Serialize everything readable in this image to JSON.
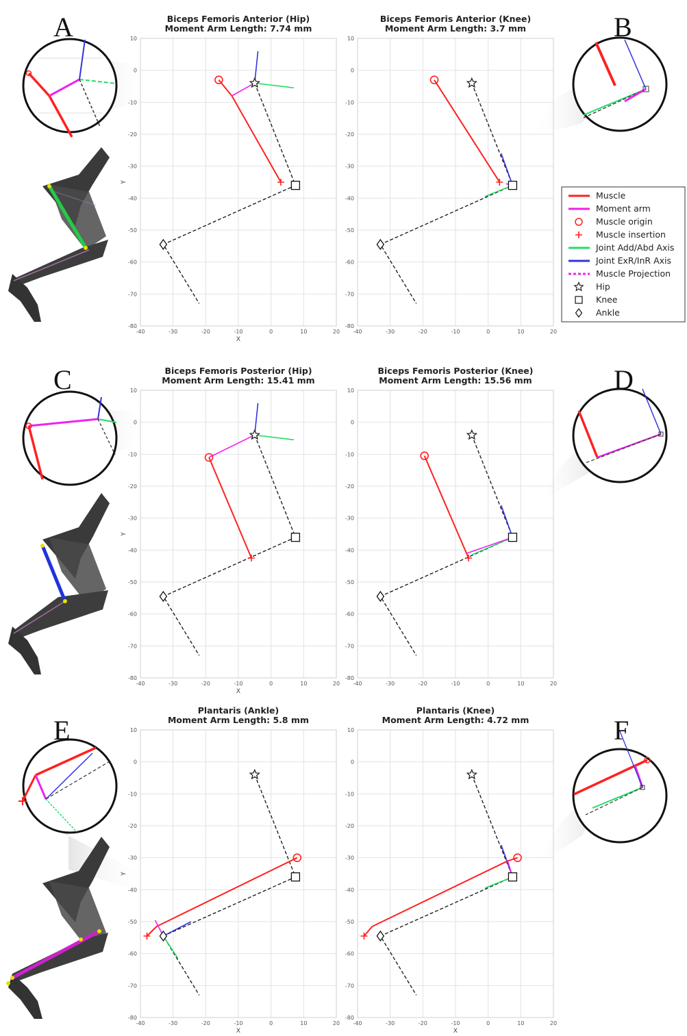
{
  "panel_letters": [
    "A",
    "B",
    "C",
    "D",
    "E",
    "F"
  ],
  "legend": [
    {
      "label": "Muscle",
      "symbol": "line",
      "color": "#ff2020"
    },
    {
      "label": "Moment arm",
      "symbol": "line",
      "color": "#ee22ee"
    },
    {
      "label": "Muscle origin",
      "symbol": "circle",
      "color": "#ff2020"
    },
    {
      "label": "Muscle insertion",
      "symbol": "plus",
      "color": "#ff2020"
    },
    {
      "label": "Joint Add/Abd Axis",
      "symbol": "line",
      "color": "#22dd66"
    },
    {
      "label": "Joint ExR/InR Axis",
      "symbol": "line",
      "color": "#3333dd"
    },
    {
      "label": "Muscle Projection",
      "symbol": "dash",
      "color": "#ee22ee"
    },
    {
      "label": "Hip",
      "symbol": "star",
      "color": "#111111"
    },
    {
      "label": "Knee",
      "symbol": "square",
      "color": "#111111"
    },
    {
      "label": "Ankle",
      "symbol": "diamond",
      "color": "#111111"
    }
  ],
  "chart_data": [
    {
      "type": "line",
      "title": [
        "Biceps Femoris Anterior (Hip)",
        "Moment Arm Length: 7.74 mm"
      ],
      "xlabel": "X",
      "ylabel": "Y",
      "xlim": [
        -40,
        20
      ],
      "ylim": [
        -80,
        10
      ],
      "xticks": [
        "-40",
        "-30",
        "-20",
        "-10",
        "0",
        "10",
        "20"
      ],
      "yticks": [
        "10",
        "0",
        "-10",
        "-20",
        "-30",
        "-40",
        "-50",
        "-60",
        "-70",
        "-80"
      ],
      "grid": true,
      "joints": {
        "hip": [
          -5,
          -4
        ],
        "knee": [
          7.5,
          -36
        ],
        "ankle": [
          -33,
          -54.5
        ],
        "foot": [
          -22,
          -73
        ]
      },
      "muscle": [
        [
          -16,
          -3
        ],
        [
          -12,
          -8
        ],
        [
          3,
          -35
        ]
      ],
      "origin": [
        -16,
        -3
      ],
      "insertion": [
        3,
        -35
      ],
      "moment_arm": [
        [
          -12,
          -8
        ],
        [
          -5,
          -4
        ]
      ],
      "add_abd_axis": [
        [
          -5,
          -4
        ],
        [
          7,
          -5.5
        ]
      ],
      "exr_inr_axis": [
        [
          -5,
          -4
        ],
        [
          -4,
          6
        ]
      ]
    },
    {
      "type": "line",
      "title": [
        "Biceps Femoris Anterior (Knee)",
        "Moment Arm Length: 3.7 mm"
      ],
      "xlabel": "",
      "ylabel": "",
      "xlim": [
        -40,
        20
      ],
      "ylim": [
        -80,
        10
      ],
      "xticks": [
        "-40",
        "-30",
        "-20",
        "-10",
        "0",
        "10",
        "20"
      ],
      "yticks": [
        "10",
        "0",
        "-10",
        "-20",
        "-30",
        "-40",
        "-50",
        "-60",
        "-70",
        "-80"
      ],
      "grid": true,
      "joints": {
        "hip": [
          -5,
          -4
        ],
        "knee": [
          7.5,
          -36
        ],
        "ankle": [
          -33,
          -54.5
        ],
        "foot": [
          -22,
          -73
        ]
      },
      "muscle": [
        [
          -16.5,
          -3
        ],
        [
          -14,
          -7
        ],
        [
          3.5,
          -35
        ]
      ],
      "origin": [
        -16.5,
        -3
      ],
      "insertion": [
        3.5,
        -35
      ],
      "moment_arm": [
        [
          5.5,
          -35.5
        ],
        [
          7.5,
          -36
        ]
      ],
      "add_abd_axis": [
        [
          7.5,
          -36
        ],
        [
          -1,
          -39.5
        ]
      ],
      "exr_inr_axis": [
        [
          7.5,
          -36
        ],
        [
          4,
          -26
        ]
      ]
    },
    {
      "type": "line",
      "title": [
        "Biceps Femoris Posterior (Hip)",
        "Moment Arm Length: 15.41 mm"
      ],
      "xlabel": "X",
      "ylabel": "Y",
      "xlim": [
        -40,
        20
      ],
      "ylim": [
        -80,
        10
      ],
      "xticks": [
        "-40",
        "-30",
        "-20",
        "-10",
        "0",
        "10",
        "20"
      ],
      "yticks": [
        "10",
        "0",
        "-10",
        "-20",
        "-30",
        "-40",
        "-50",
        "-60",
        "-70",
        "-80"
      ],
      "grid": true,
      "joints": {
        "hip": [
          -5,
          -4
        ],
        "knee": [
          7.5,
          -36
        ],
        "ankle": [
          -33,
          -54.5
        ],
        "foot": [
          -22,
          -73
        ]
      },
      "muscle": [
        [
          -19,
          -11
        ],
        [
          -6,
          -42.5
        ]
      ],
      "origin": [
        -19,
        -11
      ],
      "insertion": [
        -6,
        -42.5
      ],
      "moment_arm": [
        [
          -19,
          -11
        ],
        [
          -5,
          -4
        ]
      ],
      "add_abd_axis": [
        [
          -5,
          -4
        ],
        [
          7,
          -5.5
        ]
      ],
      "exr_inr_axis": [
        [
          -5,
          -4
        ],
        [
          -4,
          6
        ]
      ]
    },
    {
      "type": "line",
      "title": [
        "Biceps Femoris Posterior (Knee)",
        "Moment Arm Length: 15.56 mm"
      ],
      "xlabel": "",
      "ylabel": "",
      "xlim": [
        -40,
        20
      ],
      "ylim": [
        -80,
        10
      ],
      "xticks": [
        "-40",
        "-30",
        "-20",
        "-10",
        "0",
        "10",
        "20"
      ],
      "yticks": [
        "10",
        "0",
        "-10",
        "-20",
        "-30",
        "-40",
        "-50",
        "-60",
        "-70",
        "-80"
      ],
      "grid": true,
      "joints": {
        "hip": [
          -5,
          -4
        ],
        "knee": [
          7.5,
          -36
        ],
        "ankle": [
          -33,
          -54.5
        ],
        "foot": [
          -22,
          -73
        ]
      },
      "muscle": [
        [
          -19.5,
          -10.5
        ],
        [
          -6,
          -42.5
        ]
      ],
      "origin": [
        -19.5,
        -10.5
      ],
      "insertion": [
        -6,
        -42.5
      ],
      "moment_arm": [
        [
          -6.5,
          -41
        ],
        [
          7.5,
          -36
        ]
      ],
      "add_abd_axis": [
        [
          7.5,
          -36
        ],
        [
          -5,
          -41.5
        ]
      ],
      "exr_inr_axis": [
        [
          7.5,
          -36
        ],
        [
          4,
          -26
        ]
      ]
    },
    {
      "type": "line",
      "title": [
        "Plantaris (Ankle)",
        "Moment Arm Length: 5.8 mm"
      ],
      "xlabel": "X",
      "ylabel": "Y",
      "xlim": [
        -40,
        20
      ],
      "ylim": [
        -80,
        10
      ],
      "xticks": [
        "-40",
        "-30",
        "-20",
        "-10",
        "0",
        "10",
        "20"
      ],
      "yticks": [
        "10",
        "0",
        "-10",
        "-20",
        "-30",
        "-40",
        "-50",
        "-60",
        "-70",
        "-80"
      ],
      "grid": true,
      "joints": {
        "hip": [
          -5,
          -4
        ],
        "knee": [
          7.5,
          -36
        ],
        "ankle": [
          -33,
          -54.5
        ],
        "foot": [
          -22,
          -73
        ]
      },
      "muscle": [
        [
          8,
          -30
        ],
        [
          -35,
          -51.5
        ],
        [
          -38,
          -54.5
        ]
      ],
      "origin": [
        8,
        -30
      ],
      "insertion": [
        -38,
        -54.5
      ],
      "moment_arm": [
        [
          -35.5,
          -49.5
        ],
        [
          -33,
          -54.5
        ]
      ],
      "add_abd_axis": [
        [
          -33,
          -54.5
        ],
        [
          -28.5,
          -61.5
        ]
      ],
      "exr_inr_axis": [
        [
          -33,
          -54.5
        ],
        [
          -24.5,
          -50
        ]
      ]
    },
    {
      "type": "line",
      "title": [
        "Plantaris (Knee)",
        "Moment Arm Length: 4.72 mm"
      ],
      "xlabel": "X",
      "ylabel": "",
      "xlim": [
        -40,
        20
      ],
      "ylim": [
        -80,
        10
      ],
      "xticks": [
        "-40",
        "-30",
        "-20",
        "-10",
        "0",
        "10",
        "20"
      ],
      "yticks": [
        "10",
        "0",
        "-10",
        "-20",
        "-30",
        "-40",
        "-50",
        "-60",
        "-70",
        "-80"
      ],
      "grid": true,
      "joints": {
        "hip": [
          -5,
          -4
        ],
        "knee": [
          7.5,
          -36
        ],
        "ankle": [
          -33,
          -54.5
        ],
        "foot": [
          -22,
          -73
        ]
      },
      "muscle": [
        [
          9,
          -30
        ],
        [
          6,
          -31
        ],
        [
          -35.5,
          -51.5
        ],
        [
          -38,
          -54.5
        ]
      ],
      "origin": [
        9,
        -30
      ],
      "insertion": [
        -38,
        -54.5
      ],
      "moment_arm": [
        [
          6,
          -31
        ],
        [
          7.5,
          -36
        ]
      ],
      "add_abd_axis": [
        [
          7.5,
          -36
        ],
        [
          -1,
          -39.5
        ]
      ],
      "exr_inr_axis": [
        [
          7.5,
          -36
        ],
        [
          4,
          -26
        ]
      ]
    }
  ]
}
